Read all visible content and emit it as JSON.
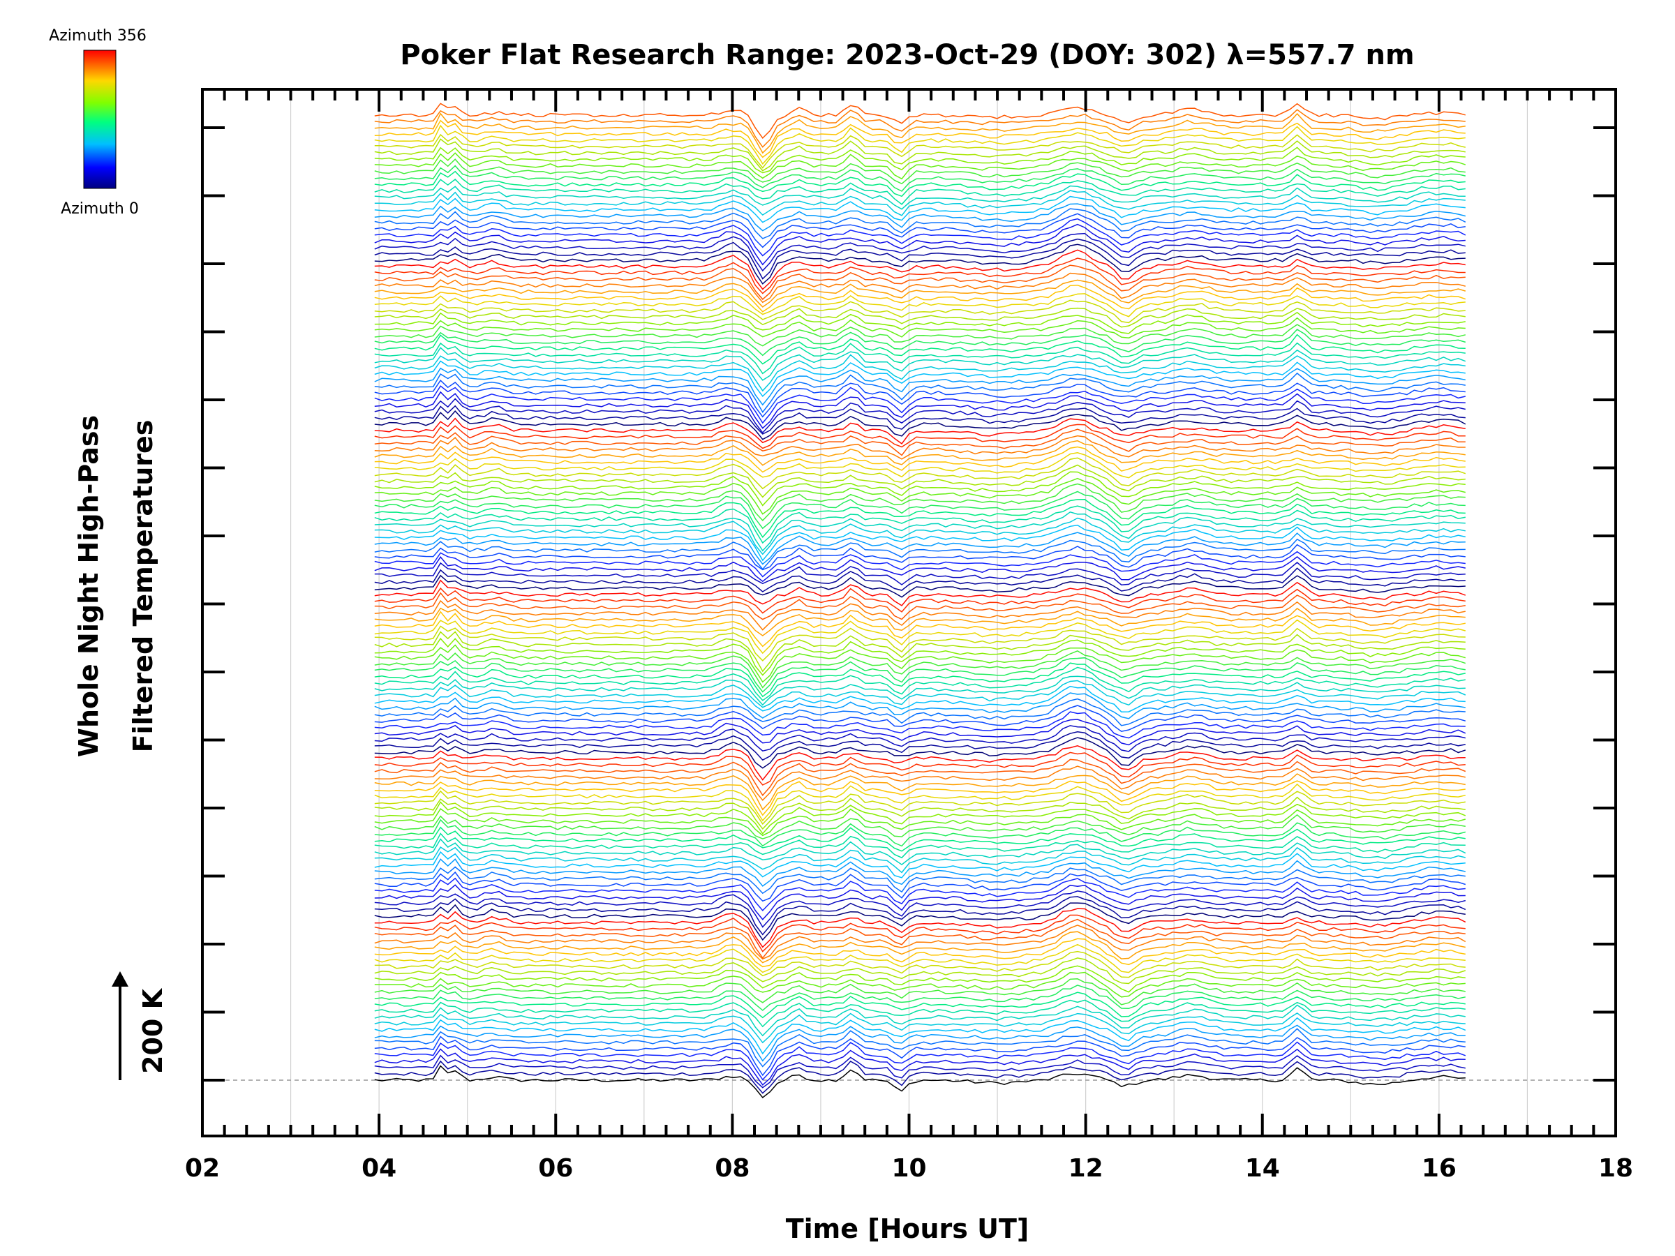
{
  "chart_data": {
    "type": "line",
    "title": "Poker Flat Research Range: 2023-Oct-29 (DOY: 302) λ=557.7 nm",
    "xlabel": "Time [Hours UT]",
    "ylabel_line1": "Whole Night High-Pass",
    "ylabel_line2": "Filtered Temperatures",
    "scale_label": "200 K",
    "xlim": [
      2,
      18
    ],
    "x_ticks": [
      "02",
      "04",
      "06",
      "08",
      "10",
      "12",
      "14",
      "16",
      "18"
    ],
    "grid": true,
    "colorbar": {
      "top_label": "Azimuth 356",
      "bottom_label": "Azimuth 0",
      "colormap": "rainbow"
    },
    "series_count": 154,
    "x_start": 3.95,
    "x_end": 16.3,
    "feature_times": [
      4.72,
      4.88,
      5.3,
      8.0,
      8.35,
      8.75,
      9.35,
      9.9,
      11.0,
      11.9,
      12.45,
      13.2,
      14.4,
      15.3,
      16.0
    ]
  },
  "colors": {
    "background": "#ffffff",
    "axis": "#000000",
    "gridline": "#d0d0d0",
    "zero_line": "#999999"
  }
}
